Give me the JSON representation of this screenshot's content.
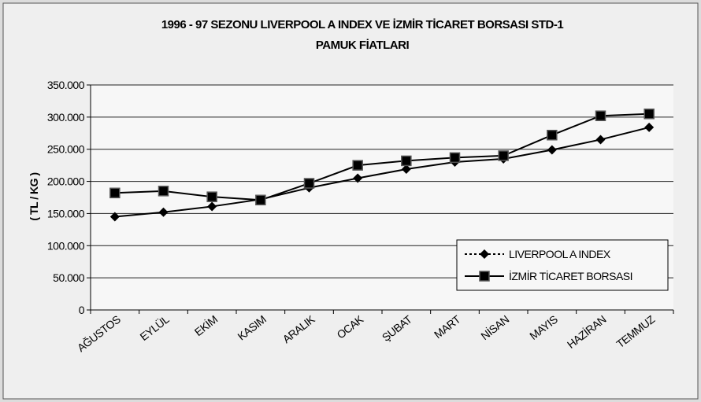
{
  "chart_data": {
    "type": "line",
    "title": [
      "1996 - 97 SEZONU LIVERPOOL A INDEX VE İZMİR TİCARET BORSASI STD-1",
      "PAMUK FİATLARI"
    ],
    "y_label": "( TL / KG )",
    "categories": [
      "AĞUSTOS",
      "EYLÜL",
      "EKİM",
      "KASIM",
      "ARALIK",
      "OCAK",
      "ŞUBAT",
      "MART",
      "NİSAN",
      "MAYIS",
      "HAZİRAN",
      "TEMMUZ"
    ],
    "series": [
      {
        "name": "LIVERPOOL A INDEX",
        "color": "#000000",
        "marker": "diamond",
        "values": [
          145000,
          152000,
          161000,
          172000,
          190000,
          205000,
          219000,
          230000,
          235000,
          249000,
          265000,
          284000
        ]
      },
      {
        "name": "İZMİR TİCARET BORSASI",
        "color": "#000000",
        "marker": "square",
        "values": [
          182000,
          185000,
          176000,
          171000,
          197000,
          225000,
          232000,
          237000,
          240000,
          272000,
          302000,
          305000
        ]
      }
    ],
    "ylim": [
      0,
      350000
    ],
    "yticks": [
      0,
      {
        "value": 50000,
        "label": "50.000"
      },
      {
        "value": 100000,
        "label": "100.000"
      },
      {
        "value": 150000,
        "label": "150.000"
      },
      {
        "value": 200000,
        "label": "200.000"
      },
      {
        "value": 250000,
        "label": "250.000"
      },
      {
        "value": 300000,
        "label": "300.000"
      },
      {
        "value": 350000,
        "label": "350.000"
      }
    ],
    "grid": true,
    "legend": "lower right"
  }
}
